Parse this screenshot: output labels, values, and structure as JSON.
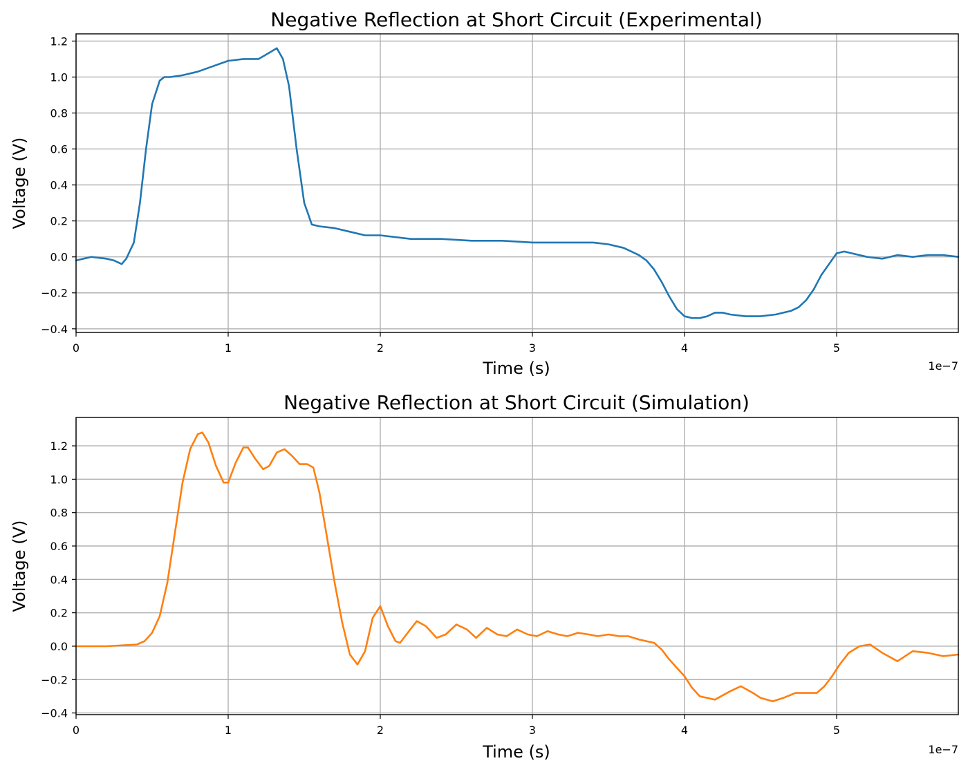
{
  "chart_data": [
    {
      "type": "line",
      "title": "Negative Reflection at Short Circuit (Experimental)",
      "xlabel": "Time (s)",
      "ylabel": "Voltage (V)",
      "x_offset_label": "1e−7",
      "xlim": [
        0,
        5.8
      ],
      "ylim": [
        -0.42,
        1.24
      ],
      "xticks": [
        0,
        1,
        2,
        3,
        4,
        5
      ],
      "xtick_labels": [
        "0",
        "1",
        "2",
        "3",
        "4",
        "5"
      ],
      "yticks": [
        -0.4,
        -0.2,
        0.0,
        0.2,
        0.4,
        0.6,
        0.8,
        1.0,
        1.2
      ],
      "ytick_labels": [
        "−0.4",
        "−0.2",
        "0.0",
        "0.2",
        "0.4",
        "0.6",
        "0.8",
        "1.0",
        "1.2"
      ],
      "grid": true,
      "series": [
        {
          "color": "#1f77b4",
          "x": [
            0,
            0.1,
            0.2,
            0.25,
            0.3,
            0.33,
            0.38,
            0.42,
            0.46,
            0.5,
            0.55,
            0.58,
            0.62,
            0.7,
            0.8,
            0.9,
            1.0,
            1.1,
            1.2,
            1.28,
            1.32,
            1.36,
            1.4,
            1.45,
            1.5,
            1.55,
            1.6,
            1.7,
            1.8,
            1.9,
            2.0,
            2.2,
            2.4,
            2.6,
            2.8,
            3.0,
            3.2,
            3.4,
            3.5,
            3.6,
            3.7,
            3.75,
            3.8,
            3.85,
            3.9,
            3.95,
            4.0,
            4.05,
            4.1,
            4.15,
            4.2,
            4.25,
            4.3,
            4.4,
            4.5,
            4.6,
            4.7,
            4.75,
            4.8,
            4.85,
            4.9,
            4.95,
            5.0,
            5.05,
            5.1,
            5.2,
            5.3,
            5.4,
            5.5,
            5.6,
            5.7,
            5.8
          ],
          "values": [
            -0.02,
            0.0,
            -0.01,
            -0.02,
            -0.04,
            -0.01,
            0.08,
            0.3,
            0.6,
            0.85,
            0.98,
            1.0,
            1.0,
            1.01,
            1.03,
            1.06,
            1.09,
            1.1,
            1.1,
            1.14,
            1.16,
            1.1,
            0.95,
            0.6,
            0.3,
            0.18,
            0.17,
            0.16,
            0.14,
            0.12,
            0.12,
            0.1,
            0.1,
            0.09,
            0.09,
            0.08,
            0.08,
            0.08,
            0.07,
            0.05,
            0.01,
            -0.02,
            -0.07,
            -0.14,
            -0.22,
            -0.29,
            -0.33,
            -0.34,
            -0.34,
            -0.33,
            -0.31,
            -0.31,
            -0.32,
            -0.33,
            -0.33,
            -0.32,
            -0.3,
            -0.28,
            -0.24,
            -0.18,
            -0.1,
            -0.04,
            0.02,
            0.03,
            0.02,
            0.0,
            -0.01,
            0.01,
            0.0,
            0.01,
            0.01,
            0.0
          ]
        }
      ]
    },
    {
      "type": "line",
      "title": "Negative Reflection at Short Circuit (Simulation)",
      "xlabel": "Time (s)",
      "ylabel": "Voltage (V)",
      "x_offset_label": "1e−7",
      "xlim": [
        0,
        5.8
      ],
      "ylim": [
        -0.41,
        1.37
      ],
      "xticks": [
        0,
        1,
        2,
        3,
        4,
        5
      ],
      "xtick_labels": [
        "0",
        "1",
        "2",
        "3",
        "4",
        "5"
      ],
      "yticks": [
        -0.4,
        -0.2,
        0.0,
        0.2,
        0.4,
        0.6,
        0.8,
        1.0,
        1.2
      ],
      "ytick_labels": [
        "−0.4",
        "−0.2",
        "0.0",
        "0.2",
        "0.4",
        "0.6",
        "0.8",
        "1.0",
        "1.2"
      ],
      "grid": true,
      "series": [
        {
          "color": "#ff7f0e",
          "x": [
            0,
            0.2,
            0.4,
            0.45,
            0.5,
            0.55,
            0.6,
            0.65,
            0.7,
            0.75,
            0.8,
            0.83,
            0.87,
            0.92,
            0.97,
            1.0,
            1.05,
            1.1,
            1.13,
            1.18,
            1.23,
            1.27,
            1.32,
            1.37,
            1.42,
            1.47,
            1.52,
            1.56,
            1.6,
            1.65,
            1.7,
            1.75,
            1.8,
            1.85,
            1.9,
            1.95,
            2.0,
            2.05,
            2.1,
            2.13,
            2.18,
            2.24,
            2.3,
            2.37,
            2.43,
            2.5,
            2.57,
            2.63,
            2.7,
            2.77,
            2.83,
            2.9,
            2.97,
            3.03,
            3.1,
            3.17,
            3.23,
            3.3,
            3.37,
            3.43,
            3.5,
            3.57,
            3.63,
            3.7,
            3.8,
            3.85,
            3.9,
            3.95,
            4.0,
            4.05,
            4.1,
            4.2,
            4.3,
            4.37,
            4.45,
            4.5,
            4.58,
            4.65,
            4.73,
            4.8,
            4.87,
            4.92,
            4.97,
            5.02,
            5.08,
            5.15,
            5.22,
            5.3,
            5.4,
            5.5,
            5.6,
            5.7,
            5.8
          ],
          "values": [
            0.0,
            0.0,
            0.01,
            0.03,
            0.08,
            0.18,
            0.38,
            0.68,
            0.98,
            1.18,
            1.27,
            1.28,
            1.22,
            1.08,
            0.98,
            0.98,
            1.1,
            1.19,
            1.19,
            1.12,
            1.06,
            1.08,
            1.16,
            1.18,
            1.14,
            1.09,
            1.09,
            1.07,
            0.92,
            0.65,
            0.38,
            0.14,
            -0.05,
            -0.11,
            -0.03,
            0.17,
            0.24,
            0.12,
            0.03,
            0.02,
            0.08,
            0.15,
            0.12,
            0.05,
            0.07,
            0.13,
            0.1,
            0.05,
            0.11,
            0.07,
            0.06,
            0.1,
            0.07,
            0.06,
            0.09,
            0.07,
            0.06,
            0.08,
            0.07,
            0.06,
            0.07,
            0.06,
            0.06,
            0.04,
            0.02,
            -0.02,
            -0.08,
            -0.13,
            -0.18,
            -0.25,
            -0.3,
            -0.32,
            -0.27,
            -0.24,
            -0.28,
            -0.31,
            -0.33,
            -0.31,
            -0.28,
            -0.28,
            -0.28,
            -0.24,
            -0.18,
            -0.11,
            -0.04,
            0.0,
            0.01,
            -0.04,
            -0.09,
            -0.03,
            -0.04,
            -0.06,
            -0.05
          ]
        }
      ]
    }
  ]
}
